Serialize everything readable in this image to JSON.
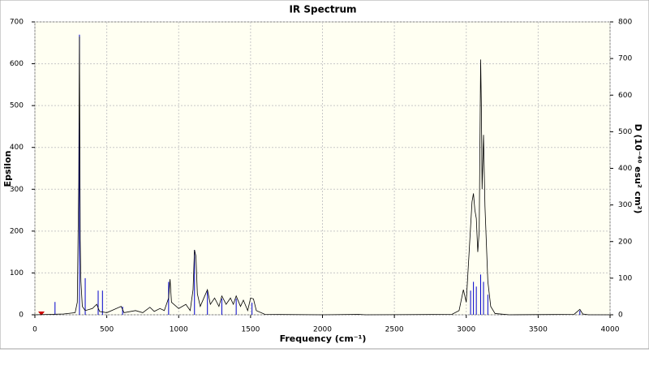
{
  "chart_data": {
    "type": "line",
    "title": "IR Spectrum",
    "xlabel": "Frequency (cm⁻¹)",
    "ylabel": "Epsilon",
    "y2label": "D (10⁻⁴⁰ esu² cm²)",
    "xlim": [
      0,
      4000
    ],
    "xticks": [
      0,
      500,
      1000,
      1500,
      2000,
      2500,
      3000,
      3500,
      4000
    ],
    "ylim": [
      0,
      700
    ],
    "yticks": [
      0,
      100,
      200,
      300,
      400,
      500,
      600,
      700
    ],
    "y2lim": [
      0,
      800
    ],
    "y2ticks": [
      0,
      100,
      200,
      300,
      400,
      500,
      600,
      700,
      800
    ],
    "grid": true,
    "series": [
      {
        "color": "#000000",
        "x": [
          0,
          100,
          200,
          280,
          295,
          305,
          310,
          315,
          320,
          330,
          350,
          400,
          430,
          450,
          500,
          600,
          620,
          700,
          750,
          800,
          830,
          870,
          900,
          930,
          940,
          950,
          1000,
          1050,
          1080,
          1100,
          1110,
          1120,
          1130,
          1150,
          1200,
          1220,
          1250,
          1280,
          1300,
          1330,
          1360,
          1380,
          1400,
          1430,
          1450,
          1480,
          1500,
          1520,
          1540,
          1600,
          2000,
          2250,
          2300,
          2900,
          2950,
          2980,
          3000,
          3020,
          3040,
          3050,
          3060,
          3070,
          3080,
          3090,
          3100,
          3105,
          3110,
          3120,
          3130,
          3150,
          3170,
          3200,
          3300,
          3750,
          3790,
          3810,
          3850,
          4000
        ],
        "values": [
          0,
          1,
          2,
          5,
          30,
          320,
          665,
          180,
          80,
          20,
          10,
          15,
          25,
          8,
          5,
          20,
          5,
          10,
          5,
          18,
          8,
          15,
          10,
          40,
          85,
          30,
          15,
          25,
          10,
          60,
          155,
          140,
          50,
          20,
          60,
          25,
          40,
          20,
          45,
          25,
          40,
          25,
          45,
          20,
          35,
          10,
          40,
          38,
          10,
          1,
          0,
          1,
          0,
          1,
          10,
          60,
          30,
          150,
          270,
          290,
          250,
          230,
          150,
          200,
          610,
          500,
          300,
          430,
          260,
          80,
          20,
          3,
          0,
          1,
          13,
          2,
          0,
          0
        ]
      },
      {
        "color": "#0000cc",
        "axis": "y2",
        "type": "stick",
        "x": [
          140,
          310,
          350,
          440,
          470,
          610,
          930,
          1110,
          1200,
          1300,
          1400,
          1510,
          3030,
          3050,
          3070,
          3100,
          3120,
          3150,
          3790
        ],
        "values": [
          35,
          765,
          100,
          66,
          66,
          22,
          90,
          177,
          66,
          44,
          44,
          33,
          66,
          90,
          77,
          110,
          90,
          55,
          11
        ]
      }
    ]
  }
}
